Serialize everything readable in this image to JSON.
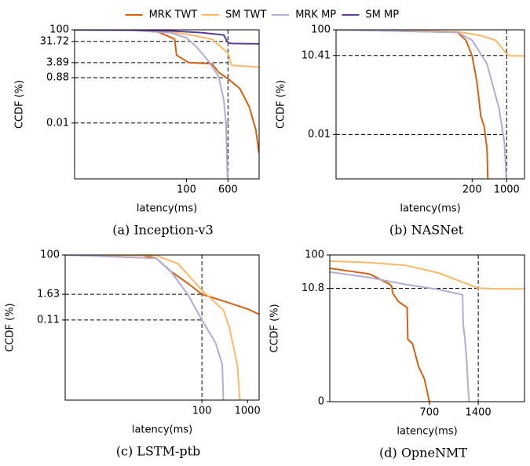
{
  "chart_data": [
    {
      "type": "line",
      "caption": "(a) Inception-v3",
      "xlabel": "latency(ms)",
      "ylabel": "CCDF (%)",
      "xscale": "log",
      "yscale": "log",
      "xlim": [
        0.8,
        2300
      ],
      "ylim": [
        4e-05,
        100
      ],
      "xticks": [
        100,
        600
      ],
      "yticks": [
        100,
        31.72,
        3.89,
        0.88,
        0.01
      ],
      "guide_x": 600,
      "legend": "upper center",
      "series": [
        {
          "name": "MRK TWT",
          "color": "#d95f0e",
          "x": [
            0.8,
            10,
            30,
            60,
            65,
            110,
            300,
            400,
            600,
            1000,
            1500,
            2000,
            2300
          ],
          "values": [
            100,
            97,
            80,
            40,
            8.2,
            3.9,
            3.5,
            1.5,
            0.8,
            0.3,
            0.05,
            0.005,
            0.0005
          ]
        },
        {
          "name": "SM TWT",
          "color": "#fdb863",
          "x": [
            0.8,
            10,
            50,
            100,
            300,
            600,
            700,
            2300
          ],
          "values": [
            100,
            95,
            80,
            65,
            40,
            10,
            3,
            2.5
          ]
        },
        {
          "name": "MRK MP",
          "color": "#b2abd2",
          "x": [
            0.8,
            10,
            50,
            100,
            150,
            250,
            400,
            500,
            550,
            600
          ],
          "values": [
            100,
            95,
            75,
            45,
            20,
            5,
            1,
            0.1,
            0.01,
            1e-05
          ]
        },
        {
          "name": "SM MP",
          "color": "#5e3c99",
          "x": [
            0.8,
            10,
            50,
            200,
            500,
            600,
            700,
            2300
          ],
          "values": [
            100,
            98,
            90,
            75,
            60,
            28,
            26,
            25
          ]
        }
      ]
    },
    {
      "type": "line",
      "caption": "(b) NASNet",
      "xlabel": "latency(ms)",
      "ylabel": "CCDF (%)",
      "xscale": "log",
      "yscale": "log",
      "xlim": [
        0.35,
        2300
      ],
      "ylim": [
        0.0002,
        100
      ],
      "xticks": [
        200,
        1000
      ],
      "yticks": [
        100,
        10.41,
        0.01
      ],
      "guide_x": 1000,
      "series": [
        {
          "color": "#d95f0e",
          "x": [
            0.35,
            100,
            150,
            200,
            250,
            300,
            350,
            400,
            420
          ],
          "values": [
            100,
            80,
            40,
            10,
            1,
            0.05,
            0.02,
            0.003,
            0.0001
          ]
        },
        {
          "color": "#fdb863",
          "x": [
            0.35,
            10,
            100,
            300,
            600,
            1000,
            1200,
            2300
          ],
          "values": [
            100,
            95,
            85,
            60,
            40,
            12,
            10,
            10
          ]
        },
        {
          "color": "#b2abd2",
          "x": [
            0.35,
            100,
            200,
            400,
            700,
            900,
            1000
          ],
          "values": [
            100,
            80,
            40,
            5,
            0.1,
            0.005,
            0.0001
          ]
        }
      ]
    },
    {
      "type": "line",
      "caption": "(c) LSTM-ptb",
      "xlabel": "latency(ms)",
      "ylabel": "CCDF (%)",
      "xscale": "log",
      "yscale": "log",
      "xlim": [
        0.1,
        1800
      ],
      "ylim": [
        2.5e-05,
        100
      ],
      "xticks": [
        100,
        1000
      ],
      "yticks": [
        100,
        1.63,
        0.11
      ],
      "guide_x": 100,
      "series": [
        {
          "color": "#d95f0e",
          "x": [
            0.1,
            5,
            10,
            20,
            50,
            100,
            300,
            1000,
            1800
          ],
          "values": [
            100,
            95,
            70,
            19,
            5,
            1.63,
            0.8,
            0.35,
            0.2
          ]
        },
        {
          "color": "#fdb863",
          "x": [
            0.1,
            10,
            30,
            100,
            300,
            400,
            600,
            700
          ],
          "values": [
            100,
            95,
            40,
            2.5,
            0.3,
            0.05,
            0.001,
            1e-05
          ]
        },
        {
          "color": "#b2abd2",
          "x": [
            0.1,
            10,
            20,
            50,
            100,
            200,
            280,
            300
          ],
          "values": [
            100,
            70,
            20,
            1.5,
            0.11,
            0.01,
            0.001,
            1e-05
          ]
        }
      ]
    },
    {
      "type": "line",
      "caption": "(d) OpneNMT",
      "xlabel": "latency(ms)",
      "ylabel": "CCDF (%)",
      "xscale": "log",
      "yscale": "symlog",
      "linthresh": 1,
      "linscale": 2.25,
      "xlim": [
        170,
        2700
      ],
      "ylim": [
        0,
        100
      ],
      "xticks": [
        700,
        1400
      ],
      "yticks": [
        100,
        10.8,
        0
      ],
      "guide_x": 1400,
      "series": [
        {
          "color": "#d95f0e",
          "x": [
            170,
            300,
            400,
            410,
            415,
            450,
            510,
            515,
            550,
            600,
            650,
            700
          ],
          "values": [
            41,
            28,
            14,
            12,
            8,
            4.5,
            3,
            0.8,
            0.75,
            0.45,
            0.3,
            0
          ]
        },
        {
          "color": "#fdb863",
          "x": [
            170,
            300,
            500,
            800,
            1000,
            1400,
            1800,
            2700
          ],
          "values": [
            66,
            60,
            50,
            30,
            20,
            11,
            10.5,
            10.4
          ]
        },
        {
          "color": "#b2abd2",
          "x": [
            170,
            300,
            500,
            800,
            1120,
            1130,
            1160,
            1190,
            1210,
            1230
          ],
          "values": [
            32,
            22,
            14,
            10,
            7,
            1,
            0.8,
            0.5,
            0.2,
            0
          ]
        }
      ]
    }
  ]
}
